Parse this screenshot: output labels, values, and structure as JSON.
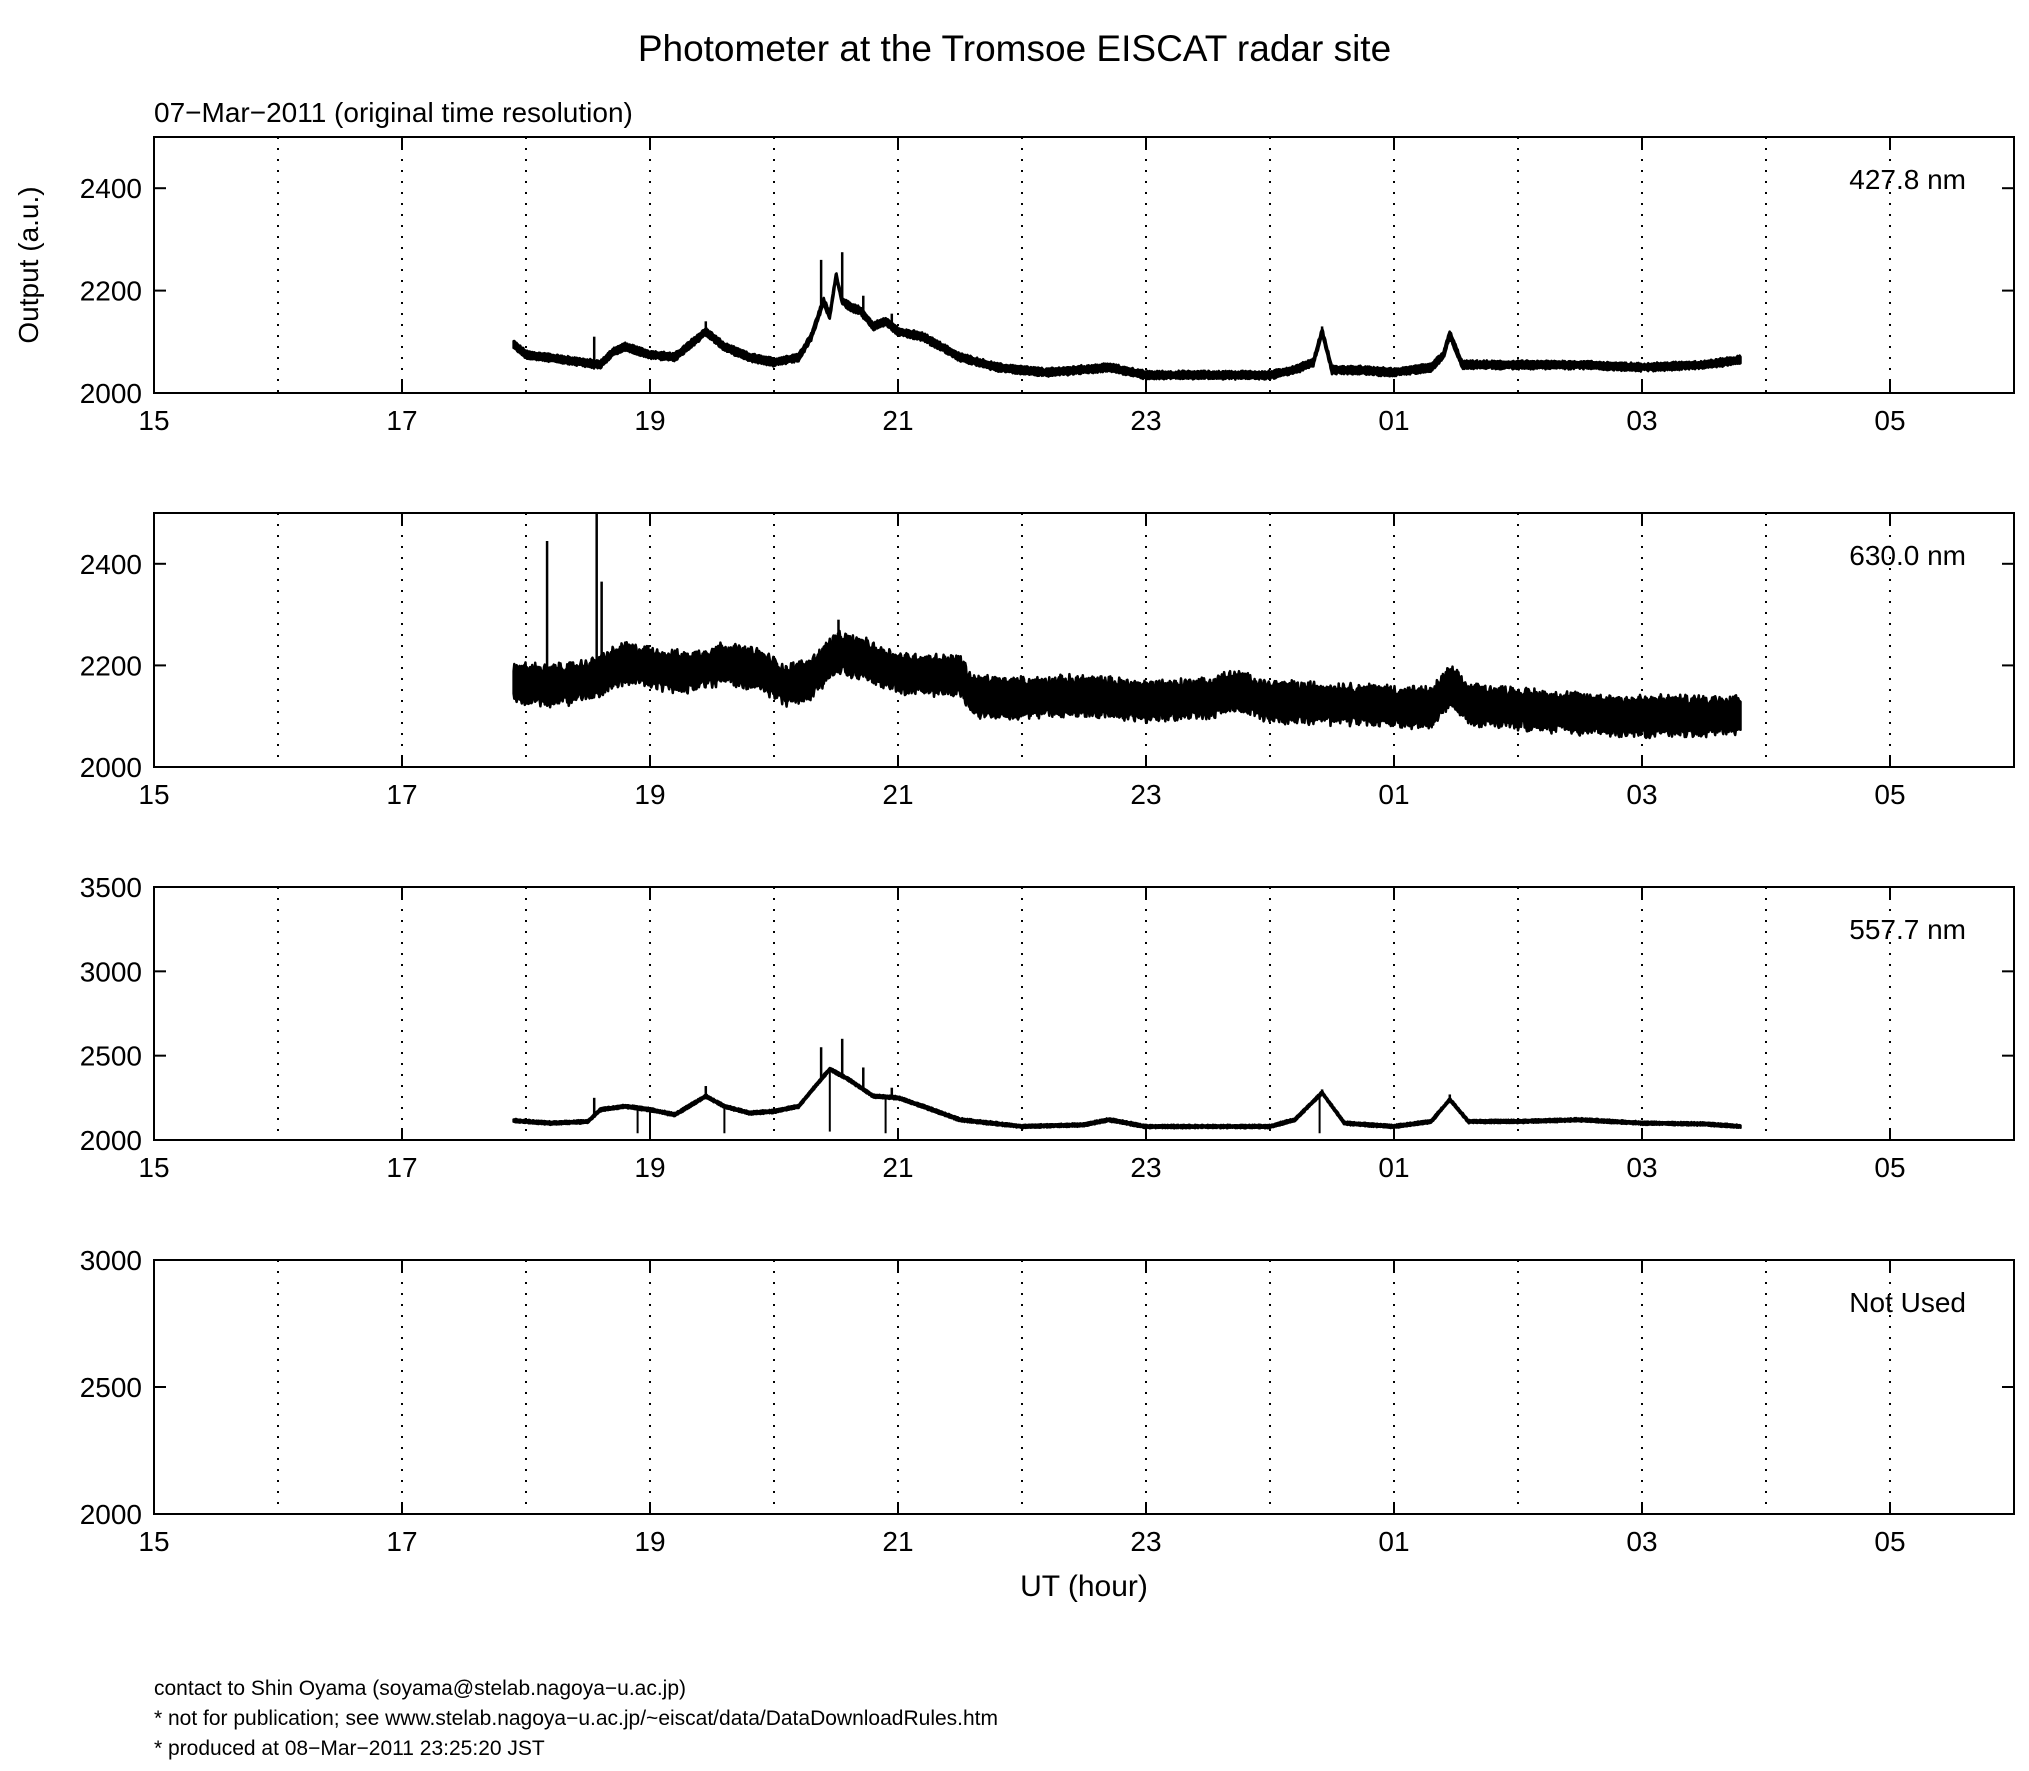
{
  "figure": {
    "title": "Photometer at the Tromsoe EISCAT radar site",
    "subtitle": "07−Mar−2011 (original time resolution)",
    "ylabel": "Output (a.u.)",
    "xlabel": "UT (hour)"
  },
  "footer": {
    "line1": "contact to Shin Oyama (soyama@stelab.nagoya−u.ac.jp)",
    "line2": "* not for publication; see www.stelab.nagoya−u.ac.jp/~eiscat/data/DataDownloadRules.htm",
    "line3": "* produced at 08−Mar−2011 23:25:20 JST"
  },
  "chart_data": [
    {
      "type": "line",
      "label": "427.8 nm",
      "x_unit": "UT hours (15 to 30 = 15:00 on 07 Mar to 06:00 on 08 Mar)",
      "xlim": [
        15,
        30
      ],
      "ylim": [
        2000,
        2500
      ],
      "xticks": [
        "15",
        "17",
        "19",
        "21",
        "23",
        "01",
        "03",
        "05"
      ],
      "yticks": [
        "2000",
        "2200",
        "2400"
      ],
      "grid": "dotted vertical lines at every hour",
      "band": 8,
      "series": [
        {
          "x": [
            17.9,
            18.0,
            18.3,
            18.6,
            18.7,
            18.8,
            19.0,
            19.2,
            19.45,
            19.6,
            19.8,
            20.0,
            20.2,
            20.3,
            20.4,
            20.45,
            20.5,
            20.55,
            20.6,
            20.7,
            20.8,
            20.9,
            21.0,
            21.2,
            21.5,
            21.8,
            22.2,
            22.7,
            23.0,
            23.5,
            24.0,
            24.2,
            24.35,
            24.42,
            24.5,
            24.7,
            25.0,
            25.3,
            25.4,
            25.45,
            25.55,
            26.0,
            26.5,
            27.0,
            27.5,
            27.8
          ],
          "y": [
            2095,
            2075,
            2065,
            2055,
            2080,
            2090,
            2075,
            2070,
            2120,
            2090,
            2070,
            2060,
            2070,
            2110,
            2180,
            2150,
            2230,
            2180,
            2170,
            2160,
            2130,
            2140,
            2120,
            2110,
            2070,
            2050,
            2040,
            2050,
            2035,
            2035,
            2035,
            2045,
            2060,
            2120,
            2045,
            2045,
            2040,
            2050,
            2075,
            2115,
            2055,
            2055,
            2055,
            2050,
            2055,
            2065
          ]
        }
      ],
      "spikes": [
        {
          "x": 18.55,
          "y": 2110
        },
        {
          "x": 19.45,
          "y": 2140
        },
        {
          "x": 20.38,
          "y": 2260
        },
        {
          "x": 20.55,
          "y": 2275
        },
        {
          "x": 20.72,
          "y": 2190
        },
        {
          "x": 20.95,
          "y": 2155
        },
        {
          "x": 24.42,
          "y": 2130
        },
        {
          "x": 25.45,
          "y": 2120
        }
      ]
    },
    {
      "type": "line",
      "label": "630.0 nm",
      "x_unit": "UT hours (15 to 30 = 15:00 on 07 Mar to 06:00 on 08 Mar)",
      "xlim": [
        15,
        30
      ],
      "ylim": [
        2000,
        2500
      ],
      "xticks": [
        "15",
        "17",
        "19",
        "21",
        "23",
        "01",
        "03",
        "05"
      ],
      "yticks": [
        "2000",
        "2200",
        "2400"
      ],
      "grid": "dotted vertical lines at every hour",
      "band": 40,
      "series": [
        {
          "x": [
            17.9,
            18.2,
            18.5,
            18.8,
            19.0,
            19.3,
            19.6,
            19.9,
            20.1,
            20.3,
            20.5,
            20.7,
            21.0,
            21.3,
            21.5,
            21.6,
            22.0,
            22.5,
            23.0,
            23.5,
            23.7,
            24.0,
            24.5,
            25.0,
            25.3,
            25.45,
            25.6,
            26.0,
            26.5,
            27.0,
            27.5,
            27.8
          ],
          "y": [
            2165,
            2160,
            2170,
            2205,
            2195,
            2185,
            2205,
            2190,
            2160,
            2175,
            2225,
            2215,
            2185,
            2180,
            2180,
            2140,
            2135,
            2140,
            2130,
            2135,
            2150,
            2130,
            2125,
            2120,
            2115,
            2160,
            2125,
            2115,
            2105,
            2100,
            2100,
            2105
          ]
        }
      ],
      "spikes": [
        {
          "x": 18.17,
          "y": 2445
        },
        {
          "x": 18.57,
          "y": 2500
        },
        {
          "x": 18.61,
          "y": 2365
        },
        {
          "x": 20.52,
          "y": 2290
        }
      ]
    },
    {
      "type": "line",
      "label": "557.7 nm",
      "x_unit": "UT hours (15 to 30 = 15:00 on 07 Mar to 06:00 on 08 Mar)",
      "xlim": [
        15,
        30
      ],
      "ylim": [
        2000,
        3500
      ],
      "xticks": [
        "15",
        "17",
        "19",
        "21",
        "23",
        "01",
        "03",
        "05"
      ],
      "yticks": [
        "2000",
        "2500",
        "3000",
        "3500"
      ],
      "grid": "dotted vertical lines at every hour",
      "band": 10,
      "series": [
        {
          "x": [
            17.9,
            18.2,
            18.5,
            18.6,
            18.8,
            19.0,
            19.2,
            19.45,
            19.6,
            19.8,
            20.0,
            20.2,
            20.3,
            20.45,
            20.6,
            20.8,
            21.0,
            21.2,
            21.5,
            22.0,
            22.5,
            22.7,
            23.0,
            23.5,
            24.0,
            24.2,
            24.42,
            24.6,
            25.0,
            25.3,
            25.45,
            25.6,
            26.0,
            26.5,
            27.0,
            27.5,
            27.8
          ],
          "y": [
            2115,
            2100,
            2110,
            2180,
            2200,
            2180,
            2150,
            2260,
            2200,
            2160,
            2170,
            2200,
            2290,
            2420,
            2360,
            2260,
            2250,
            2200,
            2120,
            2080,
            2090,
            2120,
            2080,
            2080,
            2080,
            2120,
            2280,
            2100,
            2080,
            2110,
            2240,
            2110,
            2110,
            2120,
            2100,
            2095,
            2080
          ]
        }
      ],
      "spikes": [
        {
          "x": 18.55,
          "y": 2250
        },
        {
          "x": 19.45,
          "y": 2320
        },
        {
          "x": 20.38,
          "y": 2550
        },
        {
          "x": 20.55,
          "y": 2600
        },
        {
          "x": 20.72,
          "y": 2430
        },
        {
          "x": 20.95,
          "y": 2310
        },
        {
          "x": 24.42,
          "y": 2300
        },
        {
          "x": 25.45,
          "y": 2270
        }
      ],
      "dips": [
        {
          "x": 18.9,
          "y": 2040
        },
        {
          "x": 19.0,
          "y": 2030
        },
        {
          "x": 19.6,
          "y": 2040
        },
        {
          "x": 20.45,
          "y": 2050
        },
        {
          "x": 20.9,
          "y": 2040
        },
        {
          "x": 24.4,
          "y": 2040
        }
      ]
    },
    {
      "type": "line",
      "label": "Not Used",
      "x_unit": "UT hours (15 to 30 = 15:00 on 07 Mar to 06:00 on 08 Mar)",
      "xlim": [
        15,
        30
      ],
      "ylim": [
        2000,
        3000
      ],
      "xticks": [
        "15",
        "17",
        "19",
        "21",
        "23",
        "01",
        "03",
        "05"
      ],
      "yticks": [
        "2000",
        "2500",
        "3000"
      ],
      "grid": "dotted vertical lines at every hour",
      "band": 0,
      "series": [],
      "spikes": []
    }
  ]
}
